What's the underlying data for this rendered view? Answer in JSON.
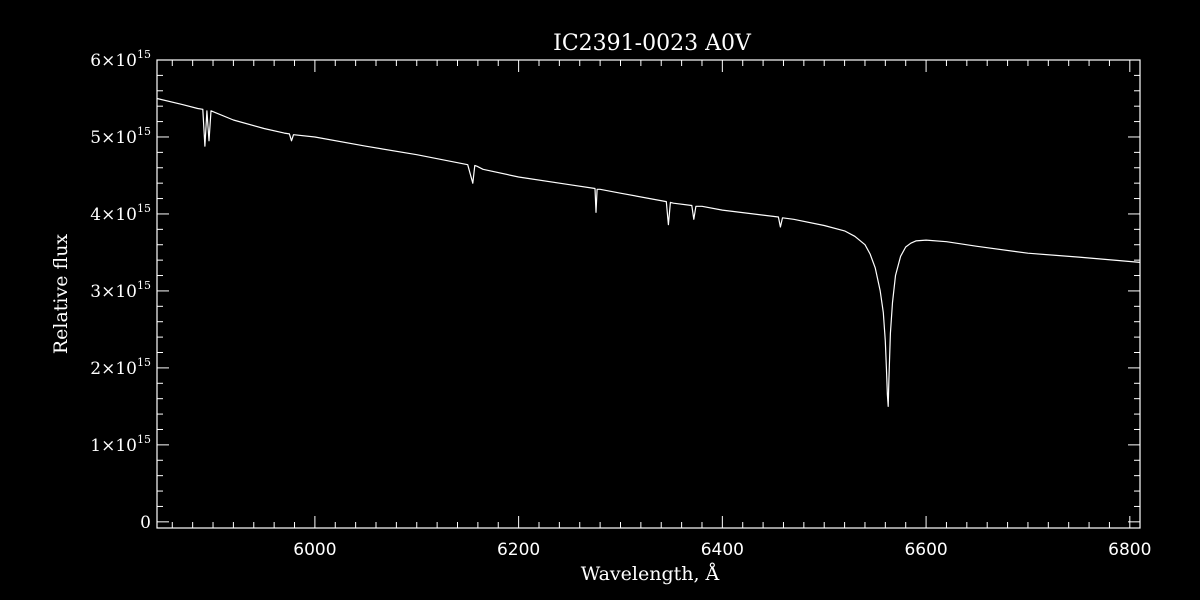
{
  "chart_data": {
    "type": "line",
    "title": "IC2391-0023  A0V",
    "xlabel": "Wavelength, Å",
    "ylabel": "Relative flux",
    "xlim": [
      5845,
      6810
    ],
    "ylim": [
      -80000000000000.0,
      6000000000000000.0
    ],
    "xticks": [
      6000,
      6200,
      6400,
      6600,
      6800
    ],
    "xtick_labels": [
      "6000",
      "6200",
      "6400",
      "6600",
      "6800"
    ],
    "yticks": [
      0,
      1000000000000000.0,
      2000000000000000.0,
      3000000000000000.0,
      4000000000000000.0,
      5000000000000000.0,
      6000000000000000.0
    ],
    "ytick_labels": [
      {
        "mant": "0",
        "times": "",
        "base": "",
        "exp": ""
      },
      {
        "mant": "1",
        "times": "×",
        "base": "10",
        "exp": "15"
      },
      {
        "mant": "2",
        "times": "×",
        "base": "10",
        "exp": "15"
      },
      {
        "mant": "3",
        "times": "×",
        "base": "10",
        "exp": "15"
      },
      {
        "mant": "4",
        "times": "×",
        "base": "10",
        "exp": "15"
      },
      {
        "mant": "5",
        "times": "×",
        "base": "10",
        "exp": "15"
      },
      {
        "mant": "6",
        "times": "×",
        "base": "10",
        "exp": "15"
      }
    ],
    "grid": false,
    "series": [
      {
        "color": "#ffffff",
        "x": [
          5845,
          5870,
          5885,
          5890,
          5892,
          5894,
          5896,
          5898,
          5920,
          5950,
          5970,
          5975,
          5977,
          5979,
          6000,
          6050,
          6100,
          6150,
          6155,
          6157,
          6159,
          6165,
          6200,
          6250,
          6275,
          6276,
          6277,
          6280,
          6300,
          6345,
          6347,
          6349,
          6352,
          6370,
          6372,
          6374,
          6380,
          6400,
          6455,
          6457,
          6459,
          6470,
          6500,
          6520,
          6530,
          6540,
          6545,
          6550,
          6555,
          6558,
          6560,
          6561,
          6562,
          6562.8,
          6563.5,
          6565,
          6567,
          6570,
          6575,
          6580,
          6585,
          6590,
          6600,
          6620,
          6650,
          6700,
          6750,
          6810
        ],
        "y": [
          5500000000000000.0,
          5420000000000000.0,
          5370000000000000.0,
          5360000000000000.0,
          4880000000000000.0,
          5340000000000000.0,
          4950000000000000.0,
          5340000000000000.0,
          5220000000000000.0,
          5110000000000000.0,
          5050000000000000.0,
          5040000000000000.0,
          4950000000000000.0,
          5030000000000000.0,
          5000000000000000.0,
          4880000000000000.0,
          4770000000000000.0,
          4640000000000000.0,
          4400000000000000.0,
          4630000000000000.0,
          4620000000000000.0,
          4580000000000000.0,
          4480000000000000.0,
          4380000000000000.0,
          4330000000000000.0,
          4020000000000000.0,
          4320000000000000.0,
          4320000000000000.0,
          4270000000000000.0,
          4160000000000000.0,
          3860000000000000.0,
          4150000000000000.0,
          4140000000000000.0,
          4110000000000000.0,
          3930000000000000.0,
          4100000000000000.0,
          4100000000000000.0,
          4050000000000000.0,
          3960000000000000.0,
          3830000000000000.0,
          3950000000000000.0,
          3930000000000000.0,
          3850000000000000.0,
          3780000000000000.0,
          3710000000000000.0,
          3600000000000000.0,
          3480000000000000.0,
          3300000000000000.0,
          3000000000000000.0,
          2720000000000000.0,
          2350000000000000.0,
          2000000000000000.0,
          1650000000000000.0,
          1500000000000000.0,
          1850000000000000.0,
          2450000000000000.0,
          2850000000000000.0,
          3200000000000000.0,
          3450000000000000.0,
          3570000000000000.0,
          3620000000000000.0,
          3650000000000000.0,
          3660000000000000.0,
          3640000000000000.0,
          3580000000000000.0,
          3490000000000000.0,
          3440000000000000.0,
          3370000000000000.0
        ]
      }
    ]
  }
}
